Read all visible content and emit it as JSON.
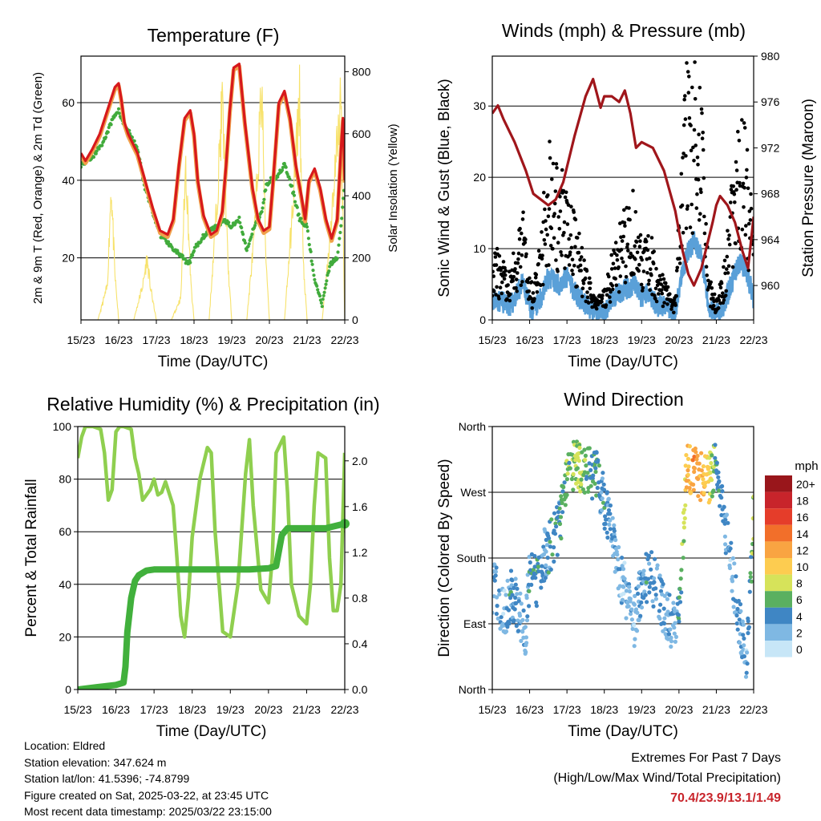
{
  "colors": {
    "temp_red": "#d7191c",
    "temp_orange": "#f0a04b",
    "dewpoint_green": "#41ab3c",
    "solar_yellow": "#f7e26b",
    "wind_blue": "#5aa0d8",
    "gust_black": "#000000",
    "pressure_maroon": "#a0161b",
    "rh_lightgreen": "#8fcf4f",
    "precip_green": "#41b03c",
    "extremes_red": "#c8242b"
  },
  "chart_data": [
    {
      "id": "temperature",
      "type": "line",
      "title": "Temperature (F)",
      "xlabel": "Time (Day/UTC)",
      "ylabel": "2m & 9m T (Red, Orange) & 2m Td (Green)",
      "ylabel_right": "Solar Insolation (Yellow)",
      "xticks": [
        "15/23",
        "16/23",
        "17/23",
        "18/23",
        "19/23",
        "20/23",
        "21/23",
        "22/23"
      ],
      "xlim": [
        0,
        7
      ],
      "ylim": [
        4,
        72
      ],
      "yticks": [
        20,
        40,
        60
      ],
      "ylim_right": [
        0,
        850
      ],
      "yticks_right": [
        0,
        200,
        400,
        600,
        800
      ],
      "grid": "horizontal",
      "series": [
        {
          "name": "2m T",
          "color": "#d7191c",
          "x": [
            0,
            0.12,
            0.3,
            0.5,
            0.7,
            0.9,
            1.0,
            1.07,
            1.15,
            1.25,
            1.35,
            1.5,
            1.7,
            1.9,
            2.1,
            2.3,
            2.45,
            2.6,
            2.75,
            2.9,
            3.0,
            3.1,
            3.25,
            3.45,
            3.6,
            3.75,
            3.85,
            3.95,
            4.05,
            4.2,
            4.35,
            4.55,
            4.7,
            4.85,
            5.0,
            5.1,
            5.25,
            5.4,
            5.55,
            5.7,
            5.85,
            5.95,
            6.05,
            6.2,
            6.35,
            6.5,
            6.65,
            6.8,
            6.9,
            6.95,
            7.0
          ],
          "y": [
            47,
            45,
            48,
            52,
            58,
            64,
            65,
            61,
            55,
            52,
            50,
            47,
            40,
            33,
            27,
            26,
            30,
            44,
            56,
            58,
            52,
            40,
            31,
            26,
            27,
            32,
            44,
            58,
            69,
            70,
            55,
            38,
            30,
            27,
            28,
            40,
            60,
            63,
            56,
            44,
            36,
            30,
            40,
            43,
            38,
            30,
            25,
            30,
            48,
            56,
            40
          ]
        },
        {
          "name": "2m Td",
          "color": "#41ab3c",
          "x": [
            0,
            0.3,
            0.6,
            0.9,
            1.0,
            1.1,
            1.3,
            1.5,
            1.7,
            1.9,
            2.1,
            2.3,
            2.5,
            2.7,
            2.85,
            3.0,
            3.2,
            3.4,
            3.6,
            3.8,
            4.0,
            4.2,
            4.4,
            4.6,
            4.8,
            4.9,
            5.0,
            5.2,
            5.4,
            5.6,
            5.8,
            6.0,
            6.2,
            6.4,
            6.6,
            6.8,
            6.9,
            7.0
          ],
          "y": [
            44,
            46,
            50,
            57,
            58,
            55,
            52,
            48,
            38,
            32,
            26,
            24,
            22,
            20,
            18,
            22,
            25,
            27,
            28,
            30,
            28,
            30,
            22,
            28,
            32,
            38,
            40,
            41,
            44,
            38,
            30,
            28,
            14,
            8,
            18,
            20,
            28,
            40
          ]
        },
        {
          "name": "Solar Insolation",
          "axis": "right",
          "color": "#f7e26b",
          "x": [
            0,
            0.45,
            0.7,
            0.8,
            0.9,
            1.0,
            1.4,
            1.65,
            1.75,
            1.85,
            2.0,
            2.4,
            2.65,
            2.78,
            2.92,
            3.0,
            3.4,
            3.6,
            3.75,
            3.9,
            4.0,
            4.4,
            4.6,
            4.8,
            4.9,
            5.0,
            5.4,
            5.6,
            5.8,
            5.9,
            6.0,
            6.4,
            6.6,
            6.8,
            6.9,
            7.0
          ],
          "y": [
            0,
            0,
            120,
            480,
            160,
            0,
            0,
            130,
            220,
            110,
            0,
            0,
            80,
            560,
            120,
            0,
            0,
            400,
            780,
            200,
            0,
            0,
            300,
            840,
            250,
            0,
            0,
            360,
            800,
            200,
            0,
            0,
            280,
            640,
            780,
            0
          ]
        }
      ]
    },
    {
      "id": "winds",
      "type": "scatter",
      "title": "Winds (mph) & Pressure (mb)",
      "xlabel": "Time (Day/UTC)",
      "ylabel": "Sonic Wind & Gust (Blue, Black)",
      "ylabel_right": "Station Pressure (Maroon)",
      "xticks": [
        "15/23",
        "16/23",
        "17/23",
        "18/23",
        "19/23",
        "20/23",
        "21/23",
        "22/23"
      ],
      "xlim": [
        0,
        7
      ],
      "ylim": [
        0,
        37
      ],
      "yticks": [
        0,
        10,
        20,
        30
      ],
      "ylim_right": [
        957.0,
        980.0
      ],
      "yticks_right": [
        960,
        964,
        968,
        972,
        976,
        980
      ],
      "grid": "horizontal",
      "series": [
        {
          "name": "Gust",
          "color": "#000000",
          "x": [
            0,
            0.5,
            0.8,
            1.0,
            1.1,
            1.3,
            1.5,
            1.8,
            2.0,
            2.2,
            2.5,
            2.8,
            3.0,
            3.2,
            3.5,
            3.8,
            4.0,
            4.2,
            4.4,
            4.6,
            4.9,
            5.0,
            5.2,
            5.4,
            5.6,
            5.8,
            6.0,
            6.2,
            6.4,
            6.6,
            6.8,
            7.0
          ],
          "y": [
            7,
            5,
            11,
            4,
            3,
            8,
            17,
            13,
            15,
            10,
            5,
            2,
            3,
            6,
            10,
            12,
            7,
            9,
            5,
            4,
            2,
            10,
            24,
            27,
            21,
            4,
            2,
            5,
            12,
            20,
            17,
            8
          ]
        },
        {
          "name": "Sonic Wind",
          "color": "#5aa0d8",
          "x": [
            0,
            0.5,
            0.8,
            1.0,
            1.1,
            1.3,
            1.5,
            1.8,
            2.0,
            2.2,
            2.5,
            2.8,
            3.0,
            3.2,
            3.5,
            3.8,
            4.0,
            4.2,
            4.4,
            4.6,
            4.9,
            5.0,
            5.2,
            5.4,
            5.6,
            5.8,
            6.0,
            6.2,
            6.4,
            6.6,
            6.8,
            7.0
          ],
          "y": [
            3,
            2,
            5,
            2,
            1,
            3,
            6,
            5,
            6,
            4,
            2,
            1,
            1,
            3,
            4,
            5,
            3,
            4,
            2,
            2,
            1,
            4,
            9,
            11,
            9,
            2,
            1,
            2,
            5,
            8,
            7,
            3
          ]
        },
        {
          "name": "Station Pressure",
          "axis": "right",
          "color": "#a0161b",
          "x": [
            0,
            0.15,
            0.3,
            0.6,
            0.9,
            1.1,
            1.3,
            1.5,
            1.7,
            1.9,
            2.2,
            2.5,
            2.7,
            2.9,
            3.0,
            3.2,
            3.4,
            3.55,
            3.7,
            3.85,
            4.0,
            4.3,
            4.6,
            4.9,
            5.1,
            5.25,
            5.4,
            5.6,
            5.75,
            5.9,
            6.0,
            6.1,
            6.3,
            6.5,
            6.7,
            6.85,
            7.0
          ],
          "y": [
            975.0,
            975.7,
            974.5,
            972.5,
            970.0,
            968.0,
            967.5,
            967.0,
            967.5,
            969.0,
            973.0,
            976.5,
            978.0,
            975.5,
            976.5,
            976.5,
            976.0,
            977.0,
            975.0,
            972.0,
            972.5,
            972.0,
            970.0,
            966.5,
            963.0,
            961.0,
            960.0,
            961.5,
            963.5,
            965.5,
            967.0,
            967.8,
            967.0,
            965.5,
            963.0,
            961.5,
            966.0
          ]
        }
      ]
    },
    {
      "id": "humidity",
      "type": "line",
      "title": "Relative Humidity (%) & Precipitation (in)",
      "xlabel": "Time (Day/UTC)",
      "ylabel": "Percent & Total Rainfall",
      "xticks": [
        "15/23",
        "16/23",
        "17/23",
        "18/23",
        "19/23",
        "20/23",
        "21/23",
        "22/23"
      ],
      "xlim": [
        0,
        7
      ],
      "ylim": [
        0,
        100
      ],
      "yticks": [
        0,
        20,
        40,
        60,
        80,
        100
      ],
      "ylim_right": [
        0,
        2.3
      ],
      "yticks_right": [
        "0.0",
        "0.4",
        "0.8",
        "1.2",
        "1.6",
        "2.0"
      ],
      "grid": "horizontal",
      "series": [
        {
          "name": "Relative Humidity",
          "color": "#8fcf4f",
          "x": [
            0,
            0.1,
            0.2,
            0.4,
            0.6,
            0.7,
            0.8,
            0.9,
            1.0,
            1.1,
            1.2,
            1.4,
            1.5,
            1.6,
            1.7,
            1.9,
            2.0,
            2.1,
            2.2,
            2.3,
            2.5,
            2.6,
            2.7,
            2.8,
            2.9,
            3.0,
            3.2,
            3.4,
            3.5,
            3.6,
            3.8,
            4.0,
            4.2,
            4.4,
            4.5,
            4.6,
            4.8,
            5.0,
            5.1,
            5.2,
            5.4,
            5.5,
            5.6,
            5.8,
            6.0,
            6.1,
            6.2,
            6.3,
            6.5,
            6.6,
            6.7,
            6.8,
            6.9,
            7.0
          ],
          "y": [
            88,
            96,
            100,
            100,
            99,
            90,
            72,
            76,
            98,
            100,
            100,
            99,
            88,
            82,
            72,
            76,
            80,
            74,
            75,
            79,
            70,
            50,
            28,
            20,
            35,
            58,
            80,
            92,
            90,
            60,
            22,
            20,
            40,
            82,
            95,
            70,
            38,
            33,
            50,
            90,
            96,
            75,
            40,
            28,
            25,
            40,
            70,
            90,
            88,
            50,
            30,
            30,
            40,
            90
          ]
        },
        {
          "name": "Total Precipitation",
          "axis": "right",
          "color": "#41b03c",
          "x": [
            0,
            0.5,
            1.0,
            1.2,
            1.25,
            1.3,
            1.4,
            1.5,
            1.6,
            1.8,
            2.0,
            2.5,
            3.0,
            3.5,
            4.0,
            4.5,
            5.0,
            5.2,
            5.35,
            5.5,
            6.0,
            6.5,
            7.0
          ],
          "y": [
            0,
            0.02,
            0.04,
            0.06,
            0.2,
            0.5,
            0.8,
            0.95,
            1.0,
            1.04,
            1.05,
            1.05,
            1.05,
            1.05,
            1.05,
            1.05,
            1.06,
            1.08,
            1.35,
            1.41,
            1.41,
            1.41,
            1.45
          ]
        }
      ]
    },
    {
      "id": "direction",
      "type": "scatter",
      "title": "Wind Direction",
      "xlabel": "Time (Day/UTC)",
      "ylabel": "Direction (Colored By Speed)",
      "xticks": [
        "15/23",
        "16/23",
        "17/23",
        "18/23",
        "19/23",
        "20/23",
        "21/23",
        "22/23"
      ],
      "xlim": [
        0,
        7
      ],
      "ylim": [
        0,
        360
      ],
      "yticks": [
        "North",
        "East",
        "South",
        "West",
        "North"
      ],
      "grid": "horizontal",
      "legend": {
        "title": "mph",
        "labels": [
          "20+",
          "18",
          "16",
          "14",
          "12",
          "10",
          "8",
          "6",
          "4",
          "2",
          "0"
        ],
        "colors": [
          "#99161b",
          "#c8242b",
          "#e53d2a",
          "#f26f2a",
          "#f9a442",
          "#fdcc50",
          "#d6e35a",
          "#5ab060",
          "#3f86c4",
          "#7fb8e3",
          "#c7e6f7"
        ]
      },
      "series": [
        {
          "name": "wind direction",
          "x": [
            0.1,
            0.3,
            0.5,
            0.7,
            0.9,
            1.0,
            1.2,
            1.4,
            1.6,
            1.8,
            2.0,
            2.2,
            2.4,
            2.6,
            2.8,
            3.0,
            3.2,
            3.4,
            3.6,
            3.8,
            4.0,
            4.2,
            4.4,
            4.6,
            4.8,
            5.0,
            5.2,
            5.4,
            5.6,
            5.8,
            6.0,
            6.2,
            6.4,
            6.6,
            6.8,
            7.0
          ],
          "y": [
            140,
            100,
            130,
            110,
            80,
            165,
            145,
            185,
            200,
            225,
            300,
            305,
            305,
            300,
            290,
            255,
            210,
            160,
            130,
            90,
            140,
            160,
            140,
            110,
            90,
            100,
            300,
            300,
            290,
            290,
            310,
            230,
            170,
            100,
            30,
            240
          ],
          "speed": [
            3,
            2,
            4,
            3,
            2,
            4,
            5,
            3,
            5,
            4,
            6,
            7,
            7,
            5,
            4,
            4,
            3,
            2,
            2,
            2,
            3,
            4,
            3,
            3,
            2,
            4,
            10,
            12,
            11,
            9,
            5,
            3,
            2,
            3,
            2,
            8
          ]
        }
      ]
    }
  ],
  "info": {
    "location": "Location: Eldred",
    "elevation": "Station elevation: 347.624 m",
    "latlon": "Station lat/lon: 41.5396; -74.8799",
    "created": "Figure created on Sat, 2025-03-22, at 23:45 UTC",
    "recent": "Most recent data timestamp: 2025/03/22 23:15:00"
  },
  "extremes": {
    "heading": "Extremes For Past 7 Days",
    "subheading": "(High/Low/Max Wind/Total Precipitation)",
    "values": "70.4/23.9/13.1/1.49"
  }
}
